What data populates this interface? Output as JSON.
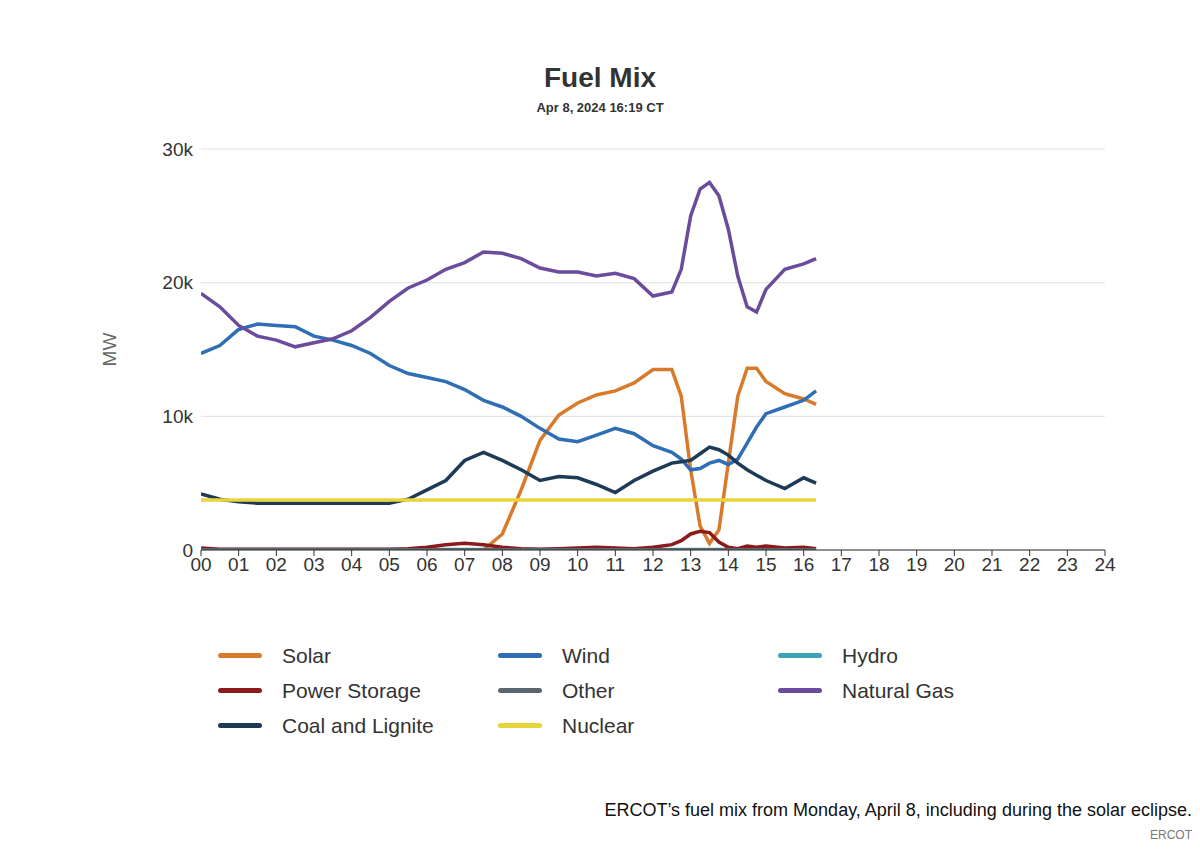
{
  "chart_data": {
    "type": "line",
    "title": "Fuel Mix",
    "subtitle": "Apr 8, 2024 16:19 CT",
    "y_label": "MW",
    "caption": "ERCOT’s fuel mix from Monday, April 8, including during the solar eclipse.",
    "source": "ERCOT",
    "grid": true,
    "x": [
      0,
      0.5,
      1,
      1.5,
      2,
      2.5,
      3,
      3.5,
      4,
      4.5,
      5,
      5.5,
      6,
      6.5,
      7,
      7.5,
      8,
      8.5,
      9,
      9.5,
      10,
      10.5,
      11,
      11.5,
      12,
      12.5,
      12.75,
      13,
      13.25,
      13.5,
      13.75,
      14,
      14.25,
      14.5,
      14.75,
      15,
      15.5,
      16,
      16.33
    ],
    "xlim": [
      0,
      24
    ],
    "xticks": [
      {
        "value": 0,
        "label": "00"
      },
      {
        "value": 1,
        "label": "01"
      },
      {
        "value": 2,
        "label": "02"
      },
      {
        "value": 3,
        "label": "03"
      },
      {
        "value": 4,
        "label": "04"
      },
      {
        "value": 5,
        "label": "05"
      },
      {
        "value": 6,
        "label": "06"
      },
      {
        "value": 7,
        "label": "07"
      },
      {
        "value": 8,
        "label": "08"
      },
      {
        "value": 9,
        "label": "09"
      },
      10,
      11,
      12,
      13,
      14,
      15,
      16,
      17,
      18,
      19,
      20,
      21,
      22,
      23,
      24
    ],
    "ylim": [
      0,
      30000
    ],
    "yticks": [
      0,
      {
        "value": 10000,
        "label": "10k"
      },
      {
        "value": 20000,
        "label": "20k"
      },
      {
        "value": 30000,
        "label": "30k"
      }
    ],
    "series": [
      {
        "name": "Solar",
        "color": "#d97a2b",
        "values": [
          0,
          0,
          0,
          0,
          0,
          0,
          0,
          0,
          0,
          0,
          0,
          0,
          0,
          0,
          0,
          0,
          1200,
          4500,
          8200,
          10100,
          11000,
          11600,
          11900,
          12500,
          13500,
          13500,
          11500,
          6000,
          1800,
          500,
          1500,
          6500,
          11500,
          13600,
          13600,
          12600,
          11700,
          11300,
          10900
        ]
      },
      {
        "name": "Wind",
        "color": "#2f6db5",
        "values": [
          14700,
          15300,
          16500,
          16900,
          16800,
          16700,
          16000,
          15700,
          15300,
          14700,
          13800,
          13200,
          12900,
          12600,
          12000,
          11200,
          10700,
          10000,
          9100,
          8300,
          8100,
          8600,
          9100,
          8700,
          7800,
          7300,
          6800,
          6000,
          6100,
          6500,
          6700,
          6400,
          6800,
          8000,
          9200,
          10200,
          10700,
          11200,
          11900
        ]
      },
      {
        "name": "Hydro",
        "color": "#3aa3b5",
        "values": [
          30,
          30,
          30,
          30,
          30,
          30,
          30,
          30,
          30,
          30,
          30,
          30,
          30,
          30,
          30,
          30,
          30,
          30,
          30,
          30,
          30,
          30,
          30,
          30,
          30,
          30,
          30,
          30,
          30,
          30,
          30,
          30,
          30,
          30,
          30,
          30,
          30,
          30,
          30
        ]
      },
      {
        "name": "Power Storage",
        "color": "#8b1a1a",
        "values": [
          150,
          50,
          50,
          50,
          50,
          50,
          50,
          50,
          50,
          50,
          50,
          100,
          200,
          400,
          500,
          400,
          200,
          100,
          50,
          100,
          150,
          200,
          150,
          100,
          200,
          400,
          700,
          1200,
          1400,
          1300,
          600,
          200,
          100,
          300,
          200,
          300,
          150,
          200,
          100
        ]
      },
      {
        "name": "Other",
        "color": "#5a6670",
        "values": [
          20,
          20,
          20,
          20,
          20,
          20,
          20,
          20,
          20,
          20,
          20,
          20,
          20,
          20,
          20,
          20,
          20,
          20,
          20,
          20,
          20,
          20,
          20,
          20,
          20,
          20,
          20,
          20,
          20,
          20,
          20,
          20,
          20,
          20,
          20,
          20,
          20,
          20,
          20
        ]
      },
      {
        "name": "Natural Gas",
        "color": "#6a4c9c",
        "values": [
          19200,
          18200,
          16800,
          16000,
          15700,
          15200,
          15500,
          15800,
          16400,
          17400,
          18600,
          19600,
          20200,
          21000,
          21500,
          22300,
          22200,
          21800,
          21100,
          20800,
          20800,
          20500,
          20700,
          20300,
          19000,
          19300,
          21000,
          25000,
          27000,
          27500,
          26500,
          24000,
          20500,
          18200,
          17800,
          19500,
          21000,
          21400,
          21800
        ]
      },
      {
        "name": "Coal and Lignite",
        "color": "#1d3a56",
        "values": [
          4200,
          3800,
          3600,
          3500,
          3500,
          3500,
          3500,
          3500,
          3500,
          3500,
          3500,
          3800,
          4500,
          5200,
          6700,
          7300,
          6700,
          6000,
          5200,
          5500,
          5400,
          4900,
          4300,
          5200,
          5900,
          6500,
          6600,
          6700,
          7200,
          7700,
          7500,
          7100,
          6500,
          6000,
          5600,
          5200,
          4600,
          5400,
          5000
        ]
      },
      {
        "name": "Nuclear",
        "color": "#e8d43c",
        "values": [
          3750,
          3750,
          3750,
          3750,
          3750,
          3750,
          3750,
          3750,
          3750,
          3750,
          3750,
          3750,
          3750,
          3750,
          3750,
          3750,
          3750,
          3750,
          3750,
          3750,
          3750,
          3750,
          3750,
          3750,
          3750,
          3750,
          3750,
          3750,
          3750,
          3750,
          3750,
          3750,
          3750,
          3750,
          3750,
          3750,
          3750,
          3750,
          3750
        ]
      }
    ]
  }
}
